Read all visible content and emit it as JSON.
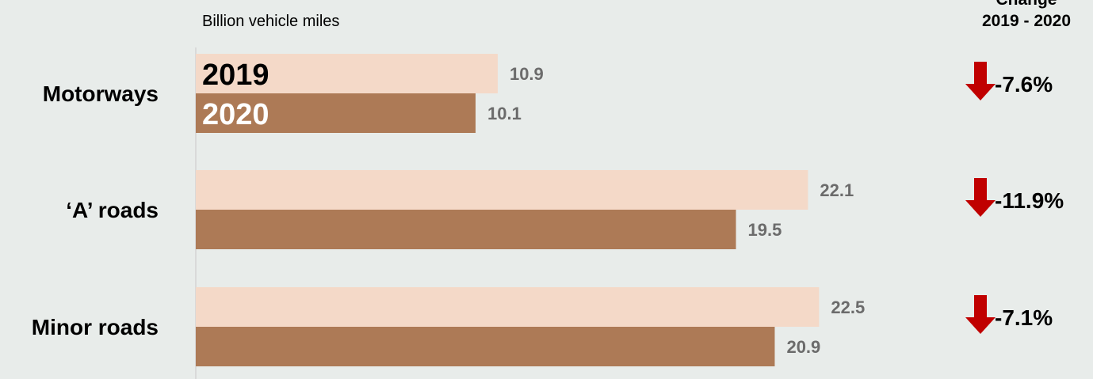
{
  "chart_data": {
    "type": "bar",
    "orientation": "horizontal",
    "unit_label": "Billion vehicle miles",
    "categories": [
      "Motorways",
      "‘A’ roads",
      "Minor roads"
    ],
    "series": [
      {
        "name": "2019",
        "values": [
          10.9,
          22.1,
          22.5
        ],
        "labels": [
          "10.9",
          "22.1",
          "22.5"
        ],
        "color": "#f4d9c8"
      },
      {
        "name": "2020",
        "values": [
          10.1,
          19.5,
          20.9
        ],
        "labels": [
          "10.1",
          "19.5",
          "20.9"
        ],
        "color": "#ad7a56"
      }
    ],
    "xlim": [
      0,
      30
    ],
    "grid": false,
    "legend": "inside first bars",
    "change_header": [
      "Change",
      "2019 - 2020"
    ],
    "change": [
      "-7.6%",
      "-11.9%",
      "-7.1%"
    ],
    "arrow_color": "#c00000",
    "axis_color": "#d9d9d9"
  }
}
